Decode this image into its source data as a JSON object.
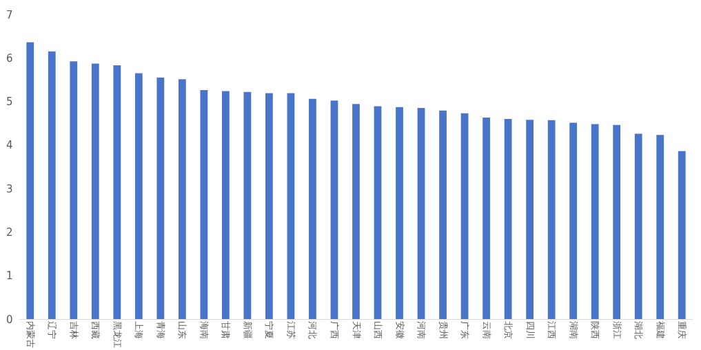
{
  "chart_data": {
    "type": "bar",
    "categories": [
      "内蒙古",
      "辽宁",
      "吉林",
      "西藏",
      "黑龙江",
      "上海",
      "青海",
      "山东",
      "海南",
      "甘肃",
      "新疆",
      "宁夏",
      "江苏",
      "河北",
      "广西",
      "天津",
      "山西",
      "安徽",
      "河南",
      "贵州",
      "广东",
      "云南",
      "北京",
      "四川",
      "江西",
      "湖南",
      "陕西",
      "浙江",
      "湖北",
      "福建",
      "重庆"
    ],
    "values": [
      6.36,
      6.15,
      5.92,
      5.87,
      5.83,
      5.65,
      5.55,
      5.51,
      5.26,
      5.24,
      5.22,
      5.19,
      5.19,
      5.06,
      5.02,
      4.94,
      4.89,
      4.87,
      4.85,
      4.79,
      4.73,
      4.63,
      4.6,
      4.58,
      4.57,
      4.51,
      4.48,
      4.46,
      4.26,
      4.23,
      3.86
    ],
    "color": "#4874c9",
    "ylim": [
      0,
      7
    ],
    "yticks": [
      0,
      1,
      2,
      3,
      4,
      5,
      6,
      7
    ],
    "grid": false
  }
}
